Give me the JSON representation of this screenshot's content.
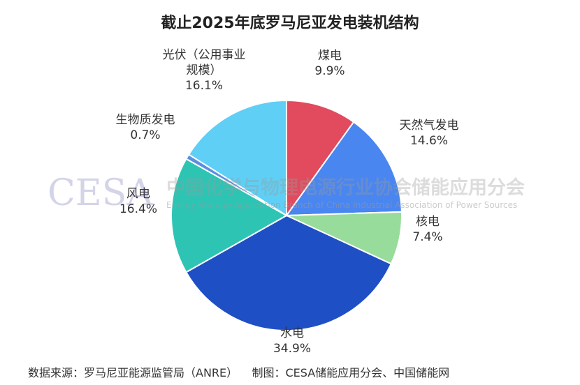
{
  "title": "截止2025年底罗马尼亚发电装机结构",
  "source_note": "数据来源：罗马尼亚能源监管局（ANRE）    制图：CESA储能应用分会、中国储能网",
  "watermark": {
    "logo": "CESA",
    "cn": "中国化学与物理电源行业协会储能应用分会",
    "en": "Energy Storage Application Branch of China Industrial Association of Power Sources"
  },
  "chart_data": {
    "type": "pie",
    "title": "截止2025年底罗马尼亚发电装机结构",
    "start_angle": "12 o'clock",
    "direction": "clockwise",
    "slices": [
      {
        "label": "煤电",
        "value": 9.9,
        "pct_text": "9.9%",
        "color": "#e24a5e"
      },
      {
        "label": "天然气发电",
        "value": 14.6,
        "pct_text": "14.6%",
        "color": "#4a86f0"
      },
      {
        "label": "核电",
        "value": 7.4,
        "pct_text": "7.4%",
        "color": "#98dc9c"
      },
      {
        "label": "水电",
        "value": 34.9,
        "pct_text": "34.9%",
        "color": "#1f4fc4"
      },
      {
        "label": "风电",
        "value": 16.4,
        "pct_text": "16.4%",
        "color": "#2ec4b4"
      },
      {
        "label": "生物质发电",
        "value": 0.7,
        "pct_text": "0.7%",
        "color": "#5a8fe0"
      },
      {
        "label": "光伏（公用事业规模）",
        "value": 16.1,
        "pct_text": "16.1%",
        "color": "#5fcff5"
      }
    ]
  }
}
